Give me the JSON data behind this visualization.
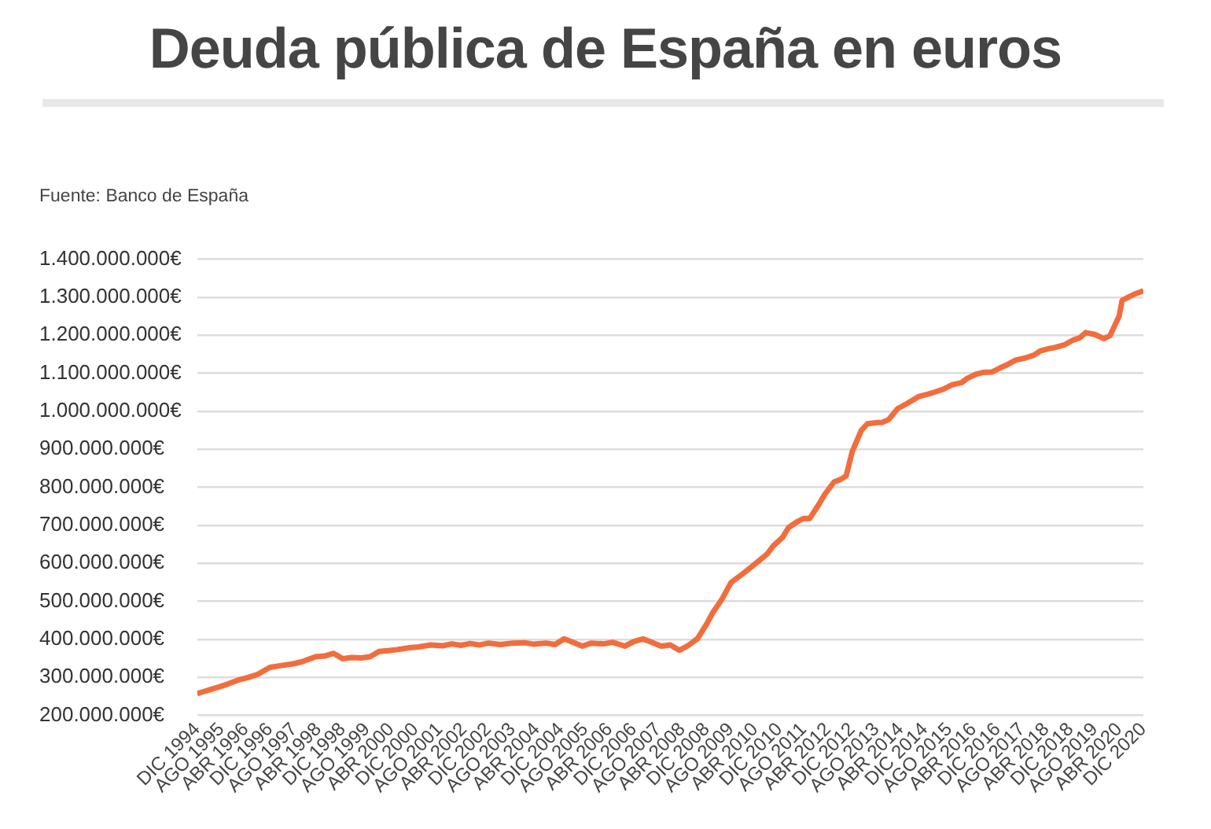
{
  "chart_data": {
    "type": "line",
    "title": "Deuda pública de España en euros",
    "annotations": [
      "Fuente: Banco de España"
    ],
    "x": [
      "1994-12",
      "1995-02",
      "1995-04",
      "1995-07",
      "1995-10",
      "1996-02",
      "1996-05",
      "1996-08",
      "1996-12",
      "1997-03",
      "1997-08",
      "1997-11",
      "1998-03",
      "1998-06",
      "1998-09",
      "1998-12",
      "1999-03",
      "1999-06",
      "1999-09",
      "1999-12",
      "2000-03",
      "2000-06",
      "2000-10",
      "2001-01",
      "2001-05",
      "2001-09",
      "2001-12",
      "2002-03",
      "2002-06",
      "2002-09",
      "2002-12",
      "2003-04",
      "2003-08",
      "2003-12",
      "2004-03",
      "2004-07",
      "2004-10",
      "2005-01",
      "2005-04",
      "2005-07",
      "2005-10",
      "2006-02",
      "2006-05",
      "2006-09",
      "2006-12",
      "2007-03",
      "2007-06",
      "2007-09",
      "2007-12",
      "2008-03",
      "2008-06",
      "2008-09",
      "2008-12",
      "2009-02",
      "2009-05",
      "2009-08",
      "2009-12",
      "2010-03",
      "2010-05",
      "2010-08",
      "2010-10",
      "2011-01",
      "2011-03",
      "2011-06",
      "2011-08",
      "2011-10",
      "2012-01",
      "2012-03",
      "2012-06",
      "2012-08",
      "2012-10",
      "2012-12",
      "2013-03",
      "2013-05",
      "2013-08",
      "2013-10",
      "2013-12",
      "2014-03",
      "2014-06",
      "2014-10",
      "2015-01",
      "2015-03",
      "2015-06",
      "2015-09",
      "2015-12",
      "2016-02",
      "2016-05",
      "2016-07",
      "2016-10",
      "2017-01",
      "2017-03",
      "2017-06",
      "2017-09",
      "2017-12",
      "2018-02",
      "2018-05",
      "2018-07",
      "2018-10",
      "2019-01",
      "2019-03",
      "2019-05",
      "2019-08",
      "2019-11",
      "2020-01",
      "2020-04",
      "2020-05",
      "2020-07",
      "2020-09",
      "2020-12"
    ],
    "series": [
      {
        "color": "#f26d3d",
        "values": [
          257000000,
          262000000,
          267000000,
          274000000,
          282000000,
          294000000,
          300000000,
          308000000,
          326000000,
          330000000,
          336000000,
          342000000,
          354000000,
          356000000,
          363000000,
          349000000,
          352000000,
          351000000,
          354000000,
          368000000,
          370000000,
          373000000,
          378000000,
          380000000,
          385000000,
          383000000,
          388000000,
          384000000,
          389000000,
          385000000,
          390000000,
          386000000,
          390000000,
          391000000,
          387000000,
          390000000,
          386000000,
          401000000,
          392000000,
          382000000,
          390000000,
          388000000,
          392000000,
          382000000,
          394000000,
          401000000,
          392000000,
          382000000,
          385000000,
          371000000,
          384000000,
          402000000,
          440000000,
          470000000,
          505000000,
          549000000,
          573000000,
          592000000,
          605000000,
          625000000,
          646000000,
          668000000,
          694000000,
          710000000,
          718000000,
          718000000,
          755000000,
          782000000,
          814000000,
          820000000,
          830000000,
          894000000,
          950000000,
          967000000,
          970000000,
          971000000,
          978000000,
          1007000000,
          1020000000,
          1039000000,
          1045000000,
          1050000000,
          1058000000,
          1070000000,
          1075000000,
          1087000000,
          1098000000,
          1102000000,
          1103000000,
          1115000000,
          1122000000,
          1135000000,
          1140000000,
          1148000000,
          1159000000,
          1165000000,
          1168000000,
          1175000000,
          1188000000,
          1193000000,
          1207000000,
          1202000000,
          1191000000,
          1199000000,
          1250000000,
          1292000000,
          1300000000,
          1308000000,
          1317000000
        ]
      }
    ],
    "xlim": [
      "1994-12",
      "2020-12"
    ],
    "xticks": [
      {
        "value": "1994-12",
        "label": "DIC 1994"
      },
      {
        "value": "1995-08",
        "label": "AGO 1995"
      },
      {
        "value": "1996-04",
        "label": "ABR 1996"
      },
      {
        "value": "1996-12",
        "label": "DIC 1996"
      },
      {
        "value": "1997-08",
        "label": "AGO 1997"
      },
      {
        "value": "1998-04",
        "label": "ABR 1998"
      },
      {
        "value": "1998-12",
        "label": "DIC 1998"
      },
      {
        "value": "1999-08",
        "label": "AGO 1999"
      },
      {
        "value": "2000-04",
        "label": "ABR 2000"
      },
      {
        "value": "2000-12",
        "label": "DIC 2000"
      },
      {
        "value": "2001-08",
        "label": "AGO 2001"
      },
      {
        "value": "2002-04",
        "label": "ABR 2002"
      },
      {
        "value": "2002-12",
        "label": "DIC 2002"
      },
      {
        "value": "2003-08",
        "label": "AGO 2003"
      },
      {
        "value": "2004-04",
        "label": "ABR 2004"
      },
      {
        "value": "2004-12",
        "label": "DIC 2004"
      },
      {
        "value": "2005-08",
        "label": "AGO 2005"
      },
      {
        "value": "2006-04",
        "label": "ABR 2006"
      },
      {
        "value": "2006-12",
        "label": "DIC 2006"
      },
      {
        "value": "2007-08",
        "label": "AGO 2007"
      },
      {
        "value": "2008-04",
        "label": "ABR 2008"
      },
      {
        "value": "2008-12",
        "label": "DIC 2008"
      },
      {
        "value": "2009-08",
        "label": "AGO 2009"
      },
      {
        "value": "2010-04",
        "label": "ABR 2010"
      },
      {
        "value": "2010-12",
        "label": "DIC 2010"
      },
      {
        "value": "2011-08",
        "label": "AGO 2011"
      },
      {
        "value": "2012-04",
        "label": "ABR 2012"
      },
      {
        "value": "2012-12",
        "label": "DIC 2012"
      },
      {
        "value": "2013-08",
        "label": "AGO 2013"
      },
      {
        "value": "2014-04",
        "label": "ABR 2014"
      },
      {
        "value": "2014-12",
        "label": "DIC 2014"
      },
      {
        "value": "2015-08",
        "label": "AGO 2015"
      },
      {
        "value": "2016-04",
        "label": "ABR 2016"
      },
      {
        "value": "2016-12",
        "label": "DIC 2016"
      },
      {
        "value": "2017-08",
        "label": "AGO 2017"
      },
      {
        "value": "2018-04",
        "label": "ABR 2018"
      },
      {
        "value": "2018-12",
        "label": "DIC 2018"
      },
      {
        "value": "2019-08",
        "label": "AGO 2019"
      },
      {
        "value": "2020-04",
        "label": "ABR 2020"
      },
      {
        "value": "2020-12",
        "label": "DIC 2020"
      }
    ],
    "ylim": [
      200000000,
      1400000000
    ],
    "yticks": [
      {
        "value": 200000000,
        "label": "200.000.000€"
      },
      {
        "value": 300000000,
        "label": "300.000.000€"
      },
      {
        "value": 400000000,
        "label": "400.000.000€"
      },
      {
        "value": 500000000,
        "label": "500.000.000€"
      },
      {
        "value": 600000000,
        "label": "600.000.000€"
      },
      {
        "value": 700000000,
        "label": "700.000.000€"
      },
      {
        "value": 800000000,
        "label": "800.000.000€"
      },
      {
        "value": 900000000,
        "label": "900.000.000€"
      },
      {
        "value": 1000000000,
        "label": "1.000.000.000€"
      },
      {
        "value": 1100000000,
        "label": "1.100.000.000€"
      },
      {
        "value": 1200000000,
        "label": "1.200.000.000€"
      },
      {
        "value": 1300000000,
        "label": "1.300.000.000€"
      },
      {
        "value": 1400000000,
        "label": "1.400.000.000€"
      }
    ],
    "grid": "y",
    "legend": false,
    "marker": "none",
    "line_style": "solid"
  }
}
